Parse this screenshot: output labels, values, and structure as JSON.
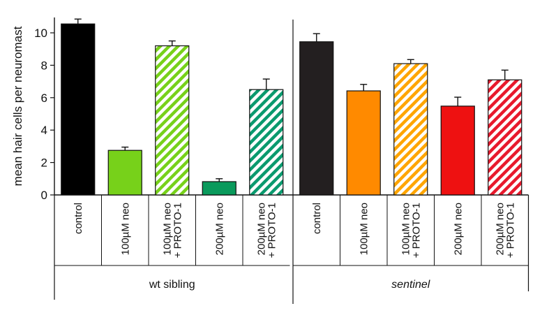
{
  "chart_data": {
    "type": "bar",
    "ylabel": "mean hair cells per neuromast",
    "ylim": [
      0,
      11
    ],
    "yticks": [
      0,
      2,
      4,
      6,
      8,
      10
    ],
    "groups": [
      {
        "label": "wt sibling",
        "italic": false,
        "bars": [
          {
            "label": [
              "control"
            ],
            "value": 10.55,
            "err": 0.3,
            "color": "#000000",
            "hatched": false
          },
          {
            "label": [
              "100µM neo"
            ],
            "value": 2.75,
            "err": 0.2,
            "color": "#77d11a",
            "hatched": false
          },
          {
            "label": [
              "100µM neo",
              "+ PROTO-1"
            ],
            "value": 9.2,
            "err": 0.3,
            "color": "#77d11a",
            "hatched": true
          },
          {
            "label": [
              "200µM neo"
            ],
            "value": 0.82,
            "err": 0.18,
            "color": "#0a9a5c",
            "hatched": false
          },
          {
            "label": [
              "200µM neo",
              "+ PROTO-1"
            ],
            "value": 6.5,
            "err": 0.65,
            "color": "#0a9a6e",
            "hatched": true
          }
        ]
      },
      {
        "label": "sentinel",
        "italic": true,
        "bars": [
          {
            "label": [
              "control"
            ],
            "value": 9.45,
            "err": 0.5,
            "color": "#231f20",
            "hatched": false
          },
          {
            "label": [
              "100µM neo"
            ],
            "value": 6.42,
            "err": 0.4,
            "color": "#ff8a00",
            "hatched": false
          },
          {
            "label": [
              "100µM neo",
              "+ PROTO-1"
            ],
            "value": 8.1,
            "err": 0.25,
            "color": "#ffa500",
            "hatched": true
          },
          {
            "label": [
              "200µM neo"
            ],
            "value": 5.48,
            "err": 0.55,
            "color": "#ee1111",
            "hatched": false
          },
          {
            "label": [
              "200µM neo",
              "+ PROTO-1"
            ],
            "value": 7.1,
            "err": 0.6,
            "color": "#e8192c",
            "hatched": true
          }
        ]
      }
    ]
  }
}
